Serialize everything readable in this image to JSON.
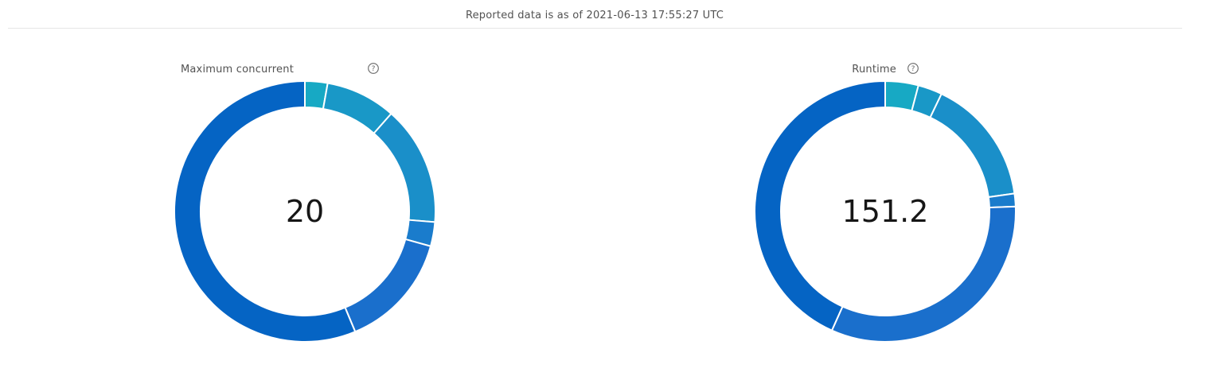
{
  "header": {
    "text": "Reported data is as of 2021-06-13 17:55:27 UTC"
  },
  "colors": {
    "ring_segments": [
      "#17a9c4",
      "#1998c7",
      "#1a8fc9",
      "#1a7ccc",
      "#1a6fcc",
      "#0564c4"
    ]
  },
  "chart_data": [
    {
      "type": "pie",
      "style": "donut",
      "title": "Maximum concurrent",
      "help_icon": "help-circle-icon",
      "center_value": "20",
      "values": [
        0.028,
        0.087,
        0.148,
        0.03,
        0.144,
        0.563
      ]
    },
    {
      "type": "pie",
      "style": "donut",
      "title": "Runtime",
      "help_icon": "help-circle-icon",
      "center_value": "151.2",
      "values": [
        0.041,
        0.03,
        0.157,
        0.016,
        0.323,
        0.433
      ]
    }
  ]
}
